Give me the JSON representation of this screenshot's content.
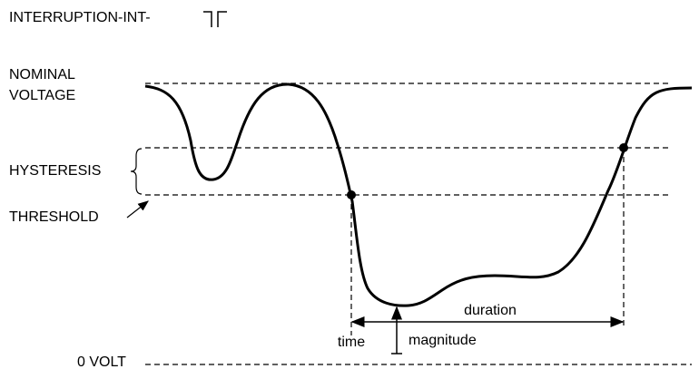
{
  "title": "INTERRUPTION-INT-",
  "labels": {
    "nominal": [
      "NOMINAL",
      "VOLTAGE"
    ],
    "hysteresis": "HYSTERESIS",
    "threshold": "THRESHOLD",
    "zero": "0 VOLT"
  },
  "annotations": {
    "duration": "duration",
    "time": "time",
    "magnitude": "magnitude"
  }
}
